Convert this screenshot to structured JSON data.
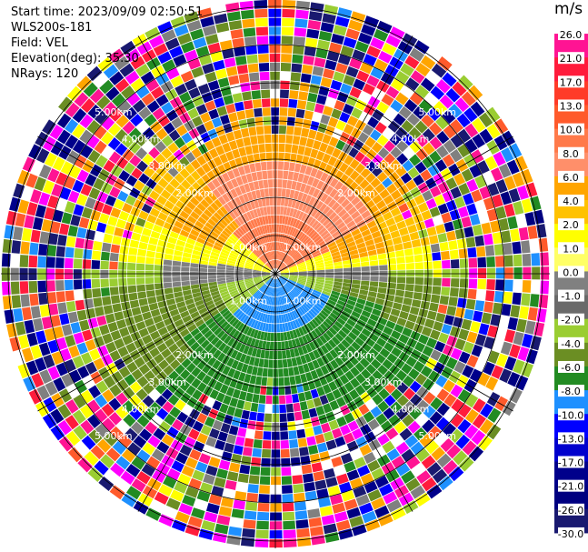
{
  "header": {
    "start_time": "Start time: 2023/09/09 02:50:51",
    "instrument": "WLS200s-181",
    "field": "Field: VEL",
    "elevation": "Elevation(deg): 35.30",
    "nrays": "NRays: 120"
  },
  "colorbar": {
    "unit": "m/s",
    "ticks": [
      "26.0",
      "21.0",
      "17.0",
      "13.0",
      "10.0",
      "8.0",
      "6.0",
      "4.0",
      "2.0",
      "1.0",
      "0.0",
      "-1.0",
      "-2.0",
      "-4.0",
      "-6.0",
      "-8.0",
      "-10.0",
      "-13.0",
      "-17.0",
      "-21.0",
      "-26.0",
      "-30.0"
    ],
    "colors": [
      "#ff1493",
      "#ff1c3c",
      "#ff3b28",
      "#ff5a2b",
      "#ff7a4a",
      "#ff8f6a",
      "#ffa500",
      "#ffc200",
      "#ffff00",
      "#ffff66",
      "#808080",
      "#6a6a6a",
      "#9acd32",
      "#6b8e23",
      "#228b22",
      "#1e90ff",
      "#0000ff",
      "#0000cd",
      "#00008b",
      "#000080",
      "#191970"
    ]
  },
  "chart_data": {
    "type": "ppi",
    "field": "VEL",
    "units": "m/s",
    "range_rings": [
      "1.00km",
      "2.00km",
      "3.00km",
      "4.00km",
      "5.00km"
    ],
    "nrays": 120,
    "elevation_deg": 35.3,
    "pattern": "inner zone (r<5.0km) coherent velocity: positive (orange/red) toward north, negative (blue/green) toward south, ~0 near east-west axis; outer zone noisy multicolor"
  }
}
